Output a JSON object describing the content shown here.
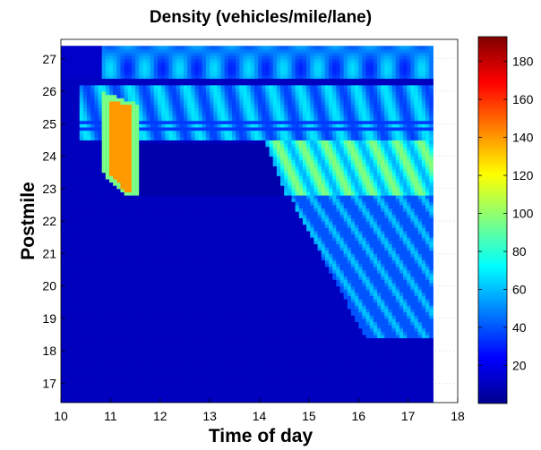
{
  "chart_data": {
    "type": "heatmap",
    "title": "Density (vehicles/mile/lane)",
    "xlabel": "Time of day",
    "ylabel": "Postmile",
    "xlim": [
      10,
      18
    ],
    "ylim": [
      16.4,
      27.6
    ],
    "xticks": [
      "10",
      "11",
      "12",
      "13",
      "14",
      "15",
      "16",
      "17",
      "18"
    ],
    "yticks": [
      "17",
      "18",
      "19",
      "20",
      "21",
      "22",
      "23",
      "24",
      "25",
      "26",
      "27"
    ],
    "data_extent": {
      "time": [
        10.0,
        17.5
      ],
      "postmile": [
        16.4,
        27.4
      ]
    },
    "colorbar": {
      "colormap": "jet",
      "range": [
        0,
        193
      ],
      "ticks": [
        "20",
        "40",
        "60",
        "80",
        "100",
        "120",
        "140",
        "160",
        "180"
      ]
    },
    "regions": [
      {
        "name": "baseline free flow",
        "density": 12
      },
      {
        "name": "top band",
        "postmile": [
          26.4,
          27.4
        ],
        "time": [
          10.8,
          17.5
        ],
        "density": 62
      },
      {
        "name": "upper congestion 24.6-26.2",
        "postmile": [
          24.6,
          26.2
        ],
        "time": [
          10.4,
          17.5
        ],
        "density": 55
      },
      {
        "name": "congestion wedge",
        "postmile": [
          22.8,
          24.5
        ],
        "time": [
          14.1,
          17.5
        ],
        "density": 85
      },
      {
        "name": "downstream queue",
        "postmile": [
          18.4,
          22.8
        ],
        "time": [
          14.5,
          17.5
        ],
        "density": 55
      },
      {
        "name": "bottleneck hotspot",
        "postmile": [
          22.8,
          26.0
        ],
        "time": [
          10.8,
          11.6
        ],
        "density": 145
      }
    ]
  }
}
